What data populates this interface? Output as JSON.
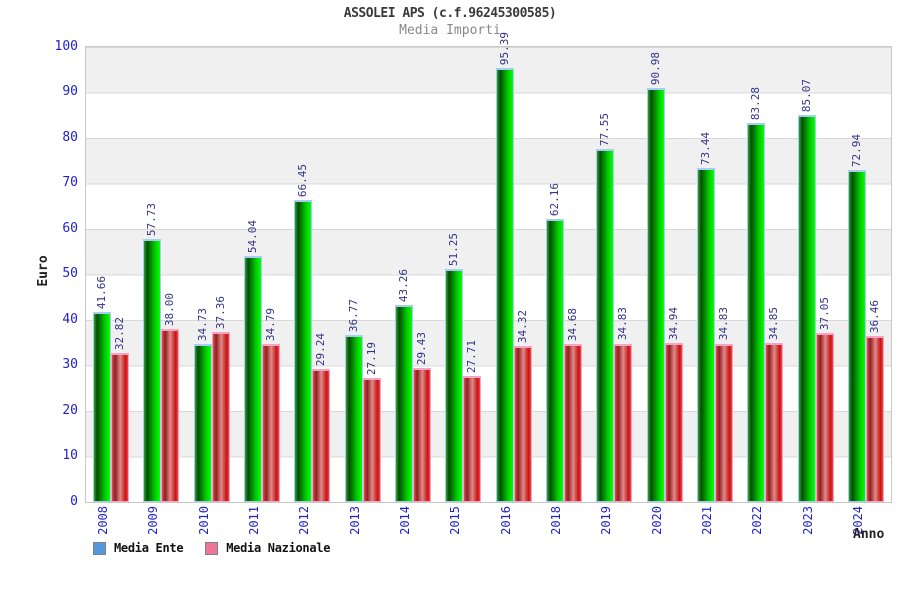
{
  "header": {
    "title": "ASSOLEI APS (c.f.96245300585)",
    "subtitle": "Media Importi"
  },
  "axes": {
    "y_label": "Euro",
    "x_label": "Anno"
  },
  "legend": {
    "items": [
      {
        "label": "Media Ente",
        "swatch_color": "#5599dd"
      },
      {
        "label": "Media Nazionale",
        "swatch_color": "#ee7799"
      }
    ]
  },
  "colors": {
    "tick_text": "#2222cc",
    "value_label_text": "#333388",
    "title_text": "#3a3a3a",
    "subtitle_text": "#888888",
    "band_gray": "#f0f0f0",
    "gridline": "#d8d8d8",
    "green_bar_mid": "#00c400",
    "green_bar_dark": "#074d07",
    "green_bar_cap": "#a5cdf5",
    "red_bar_mid": "#e28a8a",
    "red_bar_dark": "#8f1f1f",
    "red_bar_cap": "#f7a3c6"
  },
  "chart_data": {
    "type": "bar",
    "title": "ASSOLEI APS (c.f.96245300585)",
    "subtitle": "Media Importi",
    "xlabel": "Anno",
    "ylabel": "Euro",
    "ylim": [
      0,
      100
    ],
    "yticks": [
      0,
      10,
      20,
      30,
      40,
      50,
      60,
      70,
      80,
      90,
      100
    ],
    "grid": true,
    "legend_position": "bottom-left",
    "categories": [
      "2008",
      "2009",
      "2010",
      "2011",
      "2012",
      "2013",
      "2014",
      "2015",
      "2016",
      "2018",
      "2019",
      "2020",
      "2021",
      "2022",
      "2023",
      "2024"
    ],
    "series": [
      {
        "name": "Media Ente",
        "style": "green-cylinder",
        "values": [
          41.66,
          57.73,
          34.73,
          54.04,
          66.45,
          36.77,
          43.26,
          51.25,
          95.39,
          62.16,
          77.55,
          90.98,
          73.44,
          83.28,
          85.07,
          72.94
        ]
      },
      {
        "name": "Media Nazionale",
        "style": "red-cylinder",
        "values": [
          32.82,
          38.0,
          37.36,
          34.79,
          29.24,
          27.19,
          29.43,
          27.71,
          34.32,
          34.68,
          34.83,
          34.94,
          34.83,
          34.85,
          37.05,
          36.46
        ]
      }
    ]
  }
}
